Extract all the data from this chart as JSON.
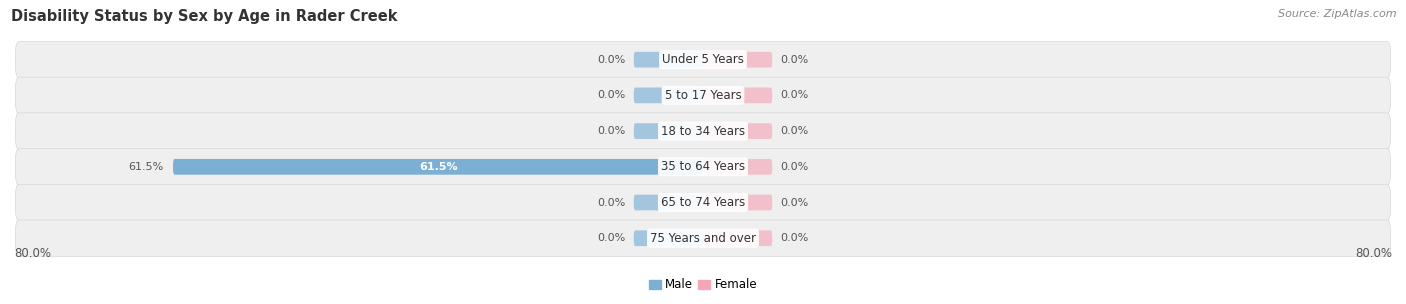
{
  "title": "Disability Status by Sex by Age in Rader Creek",
  "source": "Source: ZipAtlas.com",
  "categories": [
    "Under 5 Years",
    "5 to 17 Years",
    "18 to 34 Years",
    "35 to 64 Years",
    "65 to 74 Years",
    "75 Years and over"
  ],
  "male_values": [
    0.0,
    0.0,
    0.0,
    61.5,
    0.0,
    0.0
  ],
  "female_values": [
    0.0,
    0.0,
    0.0,
    0.0,
    0.0,
    0.0
  ],
  "male_color": "#7bafd4",
  "female_color": "#f4a7b9",
  "row_bg_color": "#efefef",
  "row_bg_edge": "#d8d8d8",
  "xlim": 80.0,
  "stub_size": 8.0,
  "title_fontsize": 10.5,
  "source_fontsize": 8,
  "label_fontsize": 8.5,
  "category_fontsize": 8.5,
  "value_fontsize": 8,
  "legend_fontsize": 8.5
}
